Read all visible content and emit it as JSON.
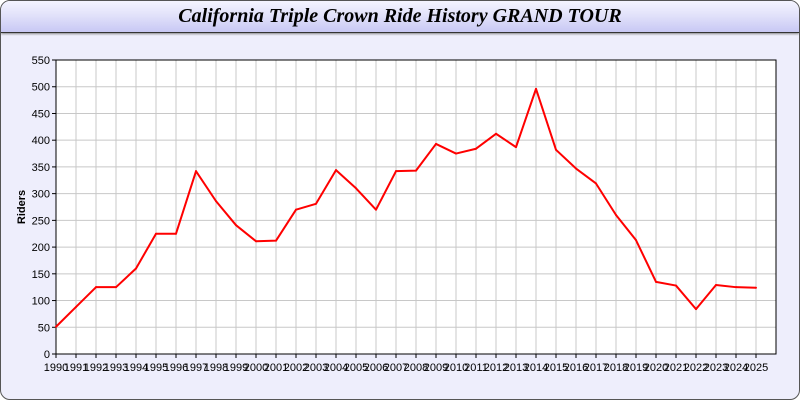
{
  "chart_data": {
    "type": "line",
    "title": "California Triple Crown Ride History GRAND TOUR",
    "xlabel": "",
    "ylabel": "Riders",
    "ylim": [
      0,
      550
    ],
    "yticks": [
      0,
      50,
      100,
      150,
      200,
      250,
      300,
      350,
      400,
      450,
      500,
      550
    ],
    "grid": true,
    "line_color": "#ff0000",
    "x": [
      1990,
      1991,
      1992,
      1993,
      1994,
      1995,
      1996,
      1997,
      1998,
      1999,
      2000,
      2001,
      2002,
      2003,
      2004,
      2005,
      2006,
      2007,
      2008,
      2009,
      2010,
      2011,
      2012,
      2013,
      2014,
      2015,
      2016,
      2017,
      2018,
      2019,
      2020,
      2021,
      2022,
      2023,
      2024,
      2025
    ],
    "values": [
      51,
      88,
      125,
      125,
      160,
      225,
      225,
      342,
      286,
      241,
      211,
      212,
      270,
      281,
      344,
      310,
      270,
      342,
      343,
      393,
      375,
      384,
      412,
      387,
      496,
      382,
      347,
      319,
      260,
      213,
      135,
      128,
      84,
      129,
      125,
      124
    ]
  }
}
